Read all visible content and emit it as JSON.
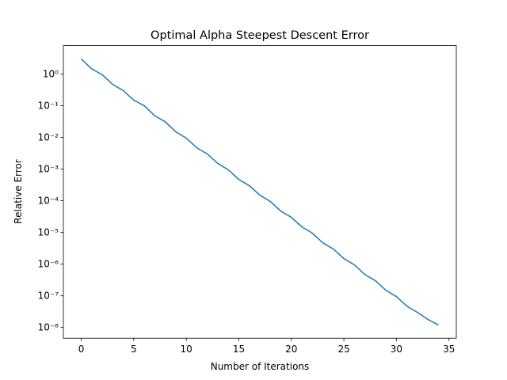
{
  "chart_data": {
    "type": "line",
    "title": "Optimal Alpha Steepest Descent Error",
    "xlabel": "Number of Iterations",
    "ylabel": "Relative Error",
    "yscale": "log",
    "x": [
      0,
      1,
      2,
      3,
      4,
      5,
      6,
      7,
      8,
      9,
      10,
      11,
      12,
      13,
      14,
      15,
      16,
      17,
      18,
      19,
      20,
      21,
      22,
      23,
      24,
      25,
      26,
      27,
      28,
      29,
      30,
      31,
      32,
      33,
      34
    ],
    "series": [
      {
        "name": "error",
        "color": "#1f77b4",
        "values": [
          3.0,
          1.45,
          0.95,
          0.47,
          0.3,
          0.15,
          0.1,
          0.048,
          0.031,
          0.015,
          0.0095,
          0.0047,
          0.003,
          0.0015,
          0.00095,
          0.00047,
          0.0003,
          0.00015,
          9.53e-05,
          4.7e-05,
          3e-05,
          1.5e-05,
          9.5e-06,
          4.7e-06,
          3e-06,
          1.5e-06,
          9.5e-07,
          4.7e-07,
          3e-07,
          1.5e-07,
          9.5e-08,
          4.7e-08,
          3e-08,
          1.8e-08,
          1.2e-08
        ]
      }
    ],
    "xlim": [
      -1.7,
      35.7
    ],
    "xticks": [
      0,
      5,
      10,
      15,
      20,
      25,
      30,
      35
    ],
    "ylim": [
      4.6e-09,
      7.9
    ],
    "yticks": [
      {
        "value": 1e-08,
        "label": "10⁻⁸"
      },
      {
        "value": 1e-07,
        "label": "10⁻⁷"
      },
      {
        "value": 1e-06,
        "label": "10⁻⁶"
      },
      {
        "value": 1e-05,
        "label": "10⁻⁵"
      },
      {
        "value": 0.0001,
        "label": "10⁻⁴"
      },
      {
        "value": 0.001,
        "label": "10⁻³"
      },
      {
        "value": 0.01,
        "label": "10⁻²"
      },
      {
        "value": 0.1,
        "label": "10⁻¹"
      },
      {
        "value": 1,
        "label": "10⁰"
      }
    ],
    "grid": false
  }
}
